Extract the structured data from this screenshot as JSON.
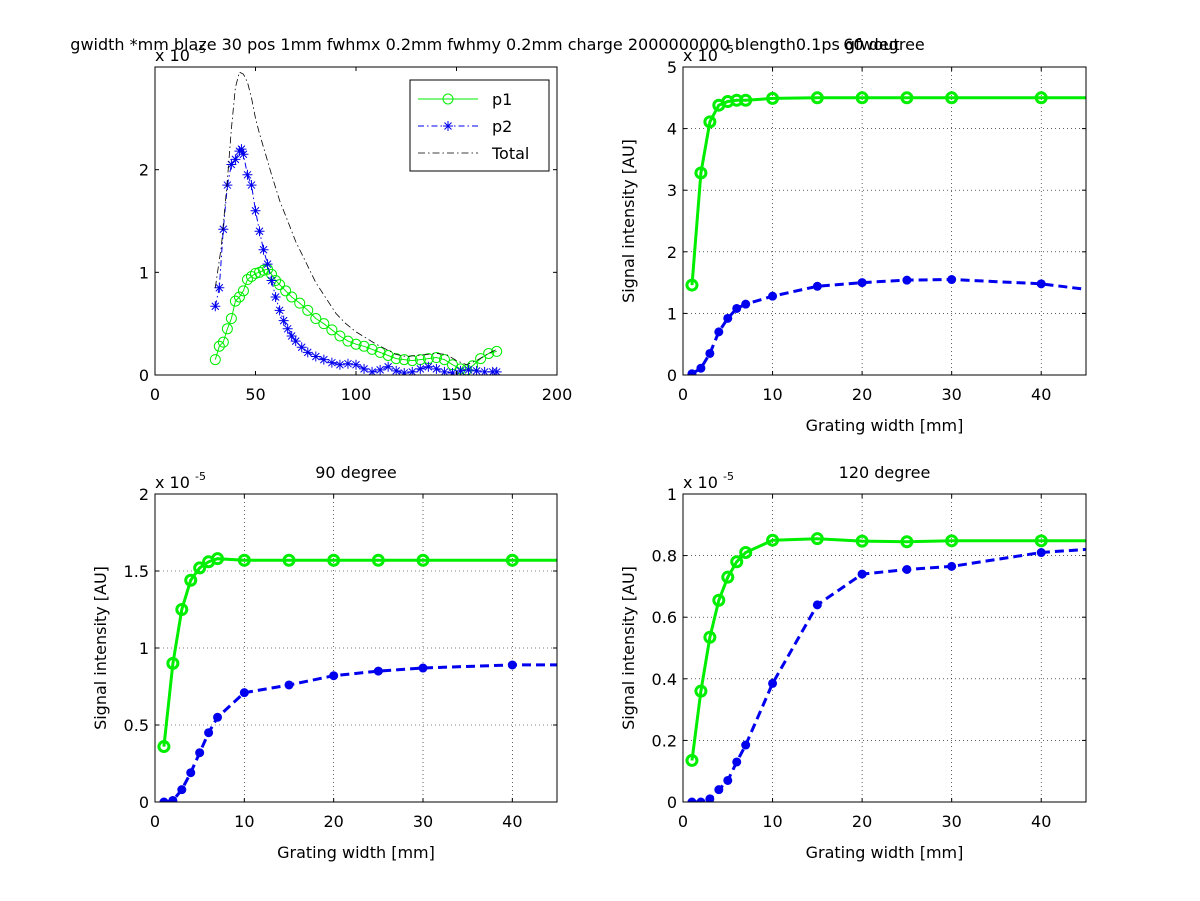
{
  "figure": {
    "overlap_title_a": "gwidth *mm blaze 30 pos 1mm fwhmx 0.2mm fwhmy 0.2mm charge 2000000000 blength0.1ps gfwout",
    "overlap_title_b": "60 degree"
  },
  "colors": {
    "p1": "#00ee00",
    "p2": "#0000ee",
    "total": "#000000"
  },
  "chart_data": [
    {
      "type": "line",
      "title": "",
      "xlabel": "",
      "ylabel": "",
      "xlim": [
        0,
        200
      ],
      "ylim": [
        0,
        3e-05
      ],
      "exponent_label": "x 10",
      "exponent": "-5",
      "xticks": [
        0,
        50,
        100,
        150,
        200
      ],
      "xtick_labels": [
        "0",
        "50",
        "100",
        "150",
        "200"
      ],
      "yticks": [
        0,
        1e-05,
        2e-05
      ],
      "ytick_labels": [
        "0",
        "1",
        "2"
      ],
      "grid": false,
      "legend": {
        "placement": "top-right",
        "entries": [
          "p1",
          "p2",
          "Total"
        ]
      },
      "series": [
        {
          "name": "p1",
          "style": "line-circle",
          "x": [
            30,
            32,
            34,
            36,
            38,
            40,
            42,
            44,
            46,
            48,
            50,
            52,
            54,
            56,
            58,
            60,
            62,
            65,
            68,
            72,
            76,
            80,
            84,
            88,
            92,
            96,
            100,
            104,
            108,
            112,
            116,
            120,
            124,
            128,
            132,
            136,
            140,
            144,
            148,
            152,
            155,
            158,
            162,
            166,
            170
          ],
          "y": [
            1.5e-06,
            2.8e-06,
            3.2e-06,
            4.5e-06,
            5.5e-06,
            7.2e-06,
            7.6e-06,
            8.2e-06,
            9.3e-06,
            9.6e-06,
            9.9e-06,
            1e-05,
            1.02e-05,
            1.03e-05,
            9.8e-06,
            9.2e-06,
            8.8e-06,
            8.2e-06,
            7.6e-06,
            7e-06,
            6.3e-06,
            5.5e-06,
            5e-06,
            4.4e-06,
            3.8e-06,
            3.3e-06,
            3e-06,
            2.8e-06,
            2.5e-06,
            2.2e-06,
            1.9e-06,
            1.6e-06,
            1.5e-06,
            1.4e-06,
            1.5e-06,
            1.6e-06,
            1.7e-06,
            1.5e-06,
            1e-06,
            6e-07,
            5e-07,
            9e-07,
            1.6e-06,
            2.1e-06,
            2.3e-06
          ]
        },
        {
          "name": "p2",
          "style": "dashdot-star",
          "x": [
            30,
            32,
            34,
            36,
            38,
            40,
            42,
            43,
            44,
            46,
            48,
            50,
            52,
            54,
            56,
            58,
            60,
            62,
            64,
            66,
            68,
            70,
            73,
            76,
            80,
            84,
            88,
            92,
            96,
            100,
            104,
            108,
            112,
            116,
            120,
            124,
            128,
            132,
            136,
            140,
            144,
            148,
            152,
            156,
            160,
            164,
            168,
            170
          ],
          "y": [
            6.7e-06,
            8.5e-06,
            1.42e-05,
            1.85e-05,
            2.05e-05,
            2.1e-05,
            2.18e-05,
            2.2e-05,
            2.15e-05,
            1.95e-05,
            1.85e-05,
            1.6e-05,
            1.4e-05,
            1.22e-05,
            1.08e-05,
            9.2e-06,
            7.6e-06,
            6.3e-06,
            5.3e-06,
            4.5e-06,
            3.8e-06,
            3.3e-06,
            2.7e-06,
            2.2e-06,
            1.8e-06,
            1.5e-06,
            1.2e-06,
            1e-06,
            1.1e-06,
            1e-06,
            6e-07,
            3e-07,
            5e-07,
            8e-07,
            4e-07,
            2e-07,
            3e-07,
            6e-07,
            8e-07,
            6e-07,
            3e-07,
            2e-07,
            4e-07,
            5e-07,
            4e-07,
            3e-07,
            3e-07,
            3e-07
          ]
        },
        {
          "name": "Total",
          "style": "dashdot",
          "x": [
            30,
            33,
            36,
            38,
            40,
            42,
            44,
            46,
            48,
            50,
            52,
            55,
            58,
            62,
            66,
            70,
            75,
            80,
            85,
            90,
            95,
            100,
            105,
            110,
            115,
            120,
            125,
            130,
            135,
            140,
            145,
            150,
            155,
            160,
            165,
            170
          ],
          "y": [
            8.5e-06,
            1.25e-05,
            1.9e-05,
            2.4e-05,
            2.8e-05,
            2.95e-05,
            2.93e-05,
            2.85e-05,
            2.7e-05,
            2.5e-05,
            2.35e-05,
            2.15e-05,
            1.95e-05,
            1.7e-05,
            1.5e-05,
            1.3e-05,
            1.1e-05,
            9e-06,
            7.5e-06,
            6e-06,
            5e-06,
            4.2e-06,
            3.6e-06,
            3e-06,
            2.5e-06,
            2e-06,
            1.8e-06,
            1.9e-06,
            2e-06,
            2.1e-06,
            2e-06,
            1.4e-06,
            1e-06,
            1.4e-06,
            2e-06,
            2.5e-06
          ]
        }
      ]
    },
    {
      "type": "line",
      "title": "",
      "xlabel": "Grating width [mm]",
      "ylabel": "Signal intensity [AU]",
      "xlim": [
        0,
        45
      ],
      "ylim": [
        0,
        5e-05
      ],
      "exponent_label": "x 10",
      "exponent": "-5",
      "xticks": [
        0,
        10,
        20,
        30,
        40
      ],
      "xtick_labels": [
        "0",
        "10",
        "20",
        "30",
        "40"
      ],
      "yticks": [
        0,
        1e-05,
        2e-05,
        3e-05,
        4e-05,
        5e-05
      ],
      "ytick_labels": [
        "0",
        "1",
        "2",
        "3",
        "4",
        "5"
      ],
      "grid": true,
      "series": [
        {
          "name": "",
          "style": "solid-circle",
          "x": [
            1,
            2,
            3,
            4,
            5,
            6,
            7,
            10,
            15,
            20,
            25,
            30,
            40,
            45
          ],
          "y": [
            1.46e-05,
            3.28e-05,
            4.11e-05,
            4.38e-05,
            4.44e-05,
            4.46e-05,
            4.46e-05,
            4.49e-05,
            4.5e-05,
            4.5e-05,
            4.5e-05,
            4.5e-05,
            4.5e-05,
            4.5e-05
          ],
          "markers": 13
        },
        {
          "name": "",
          "style": "dashed-dot",
          "x": [
            1,
            2,
            3,
            4,
            5,
            6,
            7,
            10,
            15,
            20,
            25,
            30,
            40,
            45
          ],
          "y": [
            2e-07,
            1.1e-06,
            3.5e-06,
            7e-06,
            9.2e-06,
            1.08e-05,
            1.15e-05,
            1.28e-05,
            1.44e-05,
            1.5e-05,
            1.54e-05,
            1.55e-05,
            1.48e-05,
            1.39e-05
          ],
          "markers": 13
        }
      ]
    },
    {
      "type": "line",
      "title": "90 degree",
      "xlabel": "Grating width [mm]",
      "ylabel": "Signal intensity [AU]",
      "xlim": [
        0,
        45
      ],
      "ylim": [
        0,
        2e-05
      ],
      "exponent_label": "x 10",
      "exponent": "-5",
      "xticks": [
        0,
        10,
        20,
        30,
        40
      ],
      "xtick_labels": [
        "0",
        "10",
        "20",
        "30",
        "40"
      ],
      "yticks": [
        0,
        5e-06,
        1e-05,
        1.5e-05,
        2e-05
      ],
      "ytick_labels": [
        "0",
        "0.5",
        "1",
        "1.5",
        "2"
      ],
      "grid": true,
      "series": [
        {
          "name": "",
          "style": "solid-circle",
          "x": [
            1,
            2,
            3,
            4,
            5,
            6,
            7,
            10,
            15,
            20,
            25,
            30,
            40,
            45
          ],
          "y": [
            3.6e-06,
            9e-06,
            1.25e-05,
            1.44e-05,
            1.52e-05,
            1.56e-05,
            1.58e-05,
            1.57e-05,
            1.57e-05,
            1.57e-05,
            1.57e-05,
            1.57e-05,
            1.57e-05,
            1.57e-05
          ],
          "markers": 13
        },
        {
          "name": "",
          "style": "dashed-dot",
          "x": [
            1,
            2,
            3,
            4,
            5,
            6,
            7,
            10,
            15,
            20,
            25,
            30,
            40,
            45
          ],
          "y": [
            0,
            1e-07,
            8e-07,
            1.9e-06,
            3.2e-06,
            4.5e-06,
            5.5e-06,
            7.1e-06,
            7.6e-06,
            8.2e-06,
            8.5e-06,
            8.7e-06,
            8.9e-06,
            8.9e-06
          ],
          "markers": 13
        }
      ]
    },
    {
      "type": "line",
      "title": "120 degree",
      "xlabel": "Grating width [mm]",
      "ylabel": "Signal intensity [AU]",
      "xlim": [
        0,
        45
      ],
      "ylim": [
        0,
        1e-05
      ],
      "exponent_label": "x 10",
      "exponent": "-5",
      "xticks": [
        0,
        10,
        20,
        30,
        40
      ],
      "xtick_labels": [
        "0",
        "10",
        "20",
        "30",
        "40"
      ],
      "yticks": [
        0,
        2e-06,
        4e-06,
        6e-06,
        8e-06,
        1e-05
      ],
      "ytick_labels": [
        "0",
        "0.2",
        "0.4",
        "0.6",
        "0.8",
        "1"
      ],
      "grid": true,
      "series": [
        {
          "name": "",
          "style": "solid-circle",
          "x": [
            1,
            2,
            3,
            4,
            5,
            6,
            7,
            10,
            15,
            20,
            25,
            30,
            40,
            45
          ],
          "y": [
            1.35e-06,
            3.6e-06,
            5.35e-06,
            6.55e-06,
            7.3e-06,
            7.8e-06,
            8.1e-06,
            8.5e-06,
            8.55e-06,
            8.47e-06,
            8.45e-06,
            8.48e-06,
            8.48e-06,
            8.48e-06
          ],
          "markers": 13
        },
        {
          "name": "",
          "style": "dashed-dot",
          "x": [
            1,
            2,
            3,
            4,
            5,
            6,
            7,
            10,
            15,
            20,
            25,
            30,
            40,
            45
          ],
          "y": [
            0,
            0,
            1e-07,
            4e-07,
            7e-07,
            1.3e-06,
            1.85e-06,
            3.85e-06,
            6.4e-06,
            7.4e-06,
            7.55e-06,
            7.65e-06,
            8.1e-06,
            8.2e-06
          ],
          "markers": 13
        }
      ]
    }
  ]
}
